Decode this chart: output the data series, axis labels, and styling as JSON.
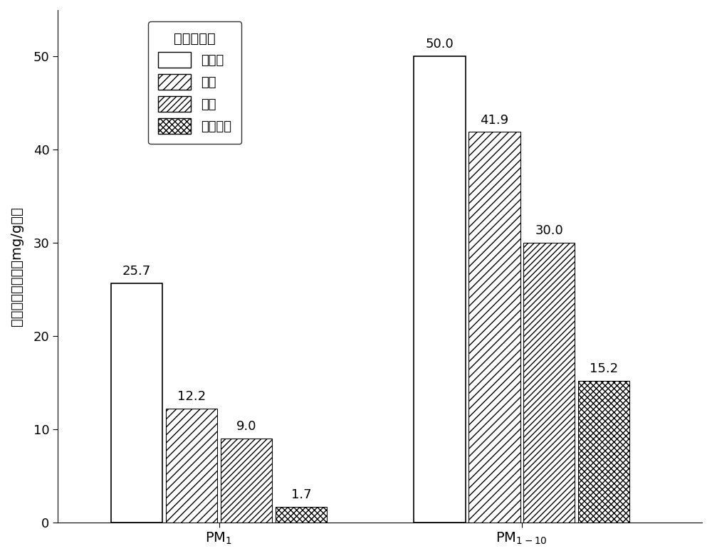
{
  "groups": [
    "PM$_1$",
    "PM$_{1-10}$"
  ],
  "categories": [
    "不处理",
    "烘焙",
    "热解",
    "水热碳化"
  ],
  "values": [
    [
      25.7,
      12.2,
      9.0,
      1.7
    ],
    [
      50.0,
      41.9,
      30.0,
      15.2
    ]
  ],
  "ylabel": "细飗粒物生成量，mg/g灰分",
  "legend_title": "热处理方式",
  "ylim": [
    0,
    55
  ],
  "yticks": [
    0,
    10,
    20,
    30,
    40,
    50
  ],
  "bar_width": 0.08,
  "group_centers": [
    0.25,
    0.72
  ],
  "xlim": [
    0.0,
    1.0
  ],
  "label_fontsize": 14,
  "tick_fontsize": 13,
  "annotation_fontsize": 13,
  "legend_fontsize": 13,
  "value_labels": [
    [
      "25.7",
      "12.2",
      "9.0",
      "1.7"
    ],
    [
      "50.0",
      "41.9",
      "30.0",
      "15.2"
    ]
  ]
}
